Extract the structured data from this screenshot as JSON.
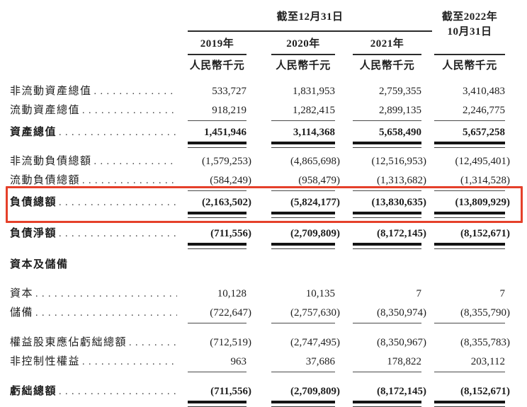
{
  "header": {
    "span_title": "截至12月31日",
    "col2022_title_line1": "截至2022年",
    "col2022_title_line2": "10月31日",
    "years": [
      "2019年",
      "2020年",
      "2021年"
    ],
    "unit": "人民幣千元"
  },
  "highlight": {
    "row_label": "負債總額",
    "color": "#e5402a"
  },
  "rows": [
    {
      "label": "非流動資產總值",
      "values": [
        "533,727",
        "1,831,953",
        "2,759,355",
        "3,410,483"
      ],
      "kind": "normal"
    },
    {
      "label": "流動資產總值",
      "values": [
        "918,219",
        "1,282,415",
        "2,899,135",
        "2,246,775"
      ],
      "kind": "normal",
      "underline": true
    },
    {
      "label": "資產總值",
      "values": [
        "1,451,946",
        "3,114,368",
        "5,658,490",
        "5,657,258"
      ],
      "kind": "total",
      "dblrule": true
    },
    {
      "label": "非流動負債總額",
      "values": [
        "(1,579,253)",
        "(4,865,698)",
        "(12,516,953)",
        "(12,495,401)"
      ],
      "kind": "normal"
    },
    {
      "label": "流動負債總額",
      "values": [
        "(584,249)",
        "(958,479)",
        "(1,313,682)",
        "(1,314,528)"
      ],
      "kind": "normal",
      "underline": true
    },
    {
      "label": "負債總額",
      "values": [
        "(2,163,502)",
        "(5,824,177)",
        "(13,830,635)",
        "(13,809,929)"
      ],
      "kind": "total",
      "dblrule": true,
      "highlighted": true
    },
    {
      "label": "負債淨額",
      "values": [
        "(711,556)",
        "(2,709,809)",
        "(8,172,145)",
        "(8,152,671)"
      ],
      "kind": "total",
      "dblrule": true,
      "space_before": true
    },
    {
      "label": "資本及儲備",
      "values": [
        "",
        "",
        "",
        ""
      ],
      "kind": "section",
      "space_before": true
    },
    {
      "label": "資本",
      "values": [
        "10,128",
        "10,135",
        "7",
        "7"
      ],
      "kind": "normal",
      "space_before": true
    },
    {
      "label": "儲備",
      "values": [
        "(722,647)",
        "(2,757,630)",
        "(8,350,974)",
        "(8,355,790)"
      ],
      "kind": "normal",
      "underline": true
    },
    {
      "label": "權益股東應佔虧絀總額",
      "values": [
        "(712,519)",
        "(2,747,495)",
        "(8,350,967)",
        "(8,355,783)"
      ],
      "kind": "normal",
      "space_before": true
    },
    {
      "label": "非控制性權益",
      "values": [
        "963",
        "37,686",
        "178,822",
        "203,112"
      ],
      "kind": "normal",
      "underline": true
    },
    {
      "label": "虧絀總額",
      "values": [
        "(711,556)",
        "(2,709,809)",
        "(8,172,145)",
        "(8,152,671)"
      ],
      "kind": "total",
      "dblrule": true,
      "space_before": true
    }
  ]
}
